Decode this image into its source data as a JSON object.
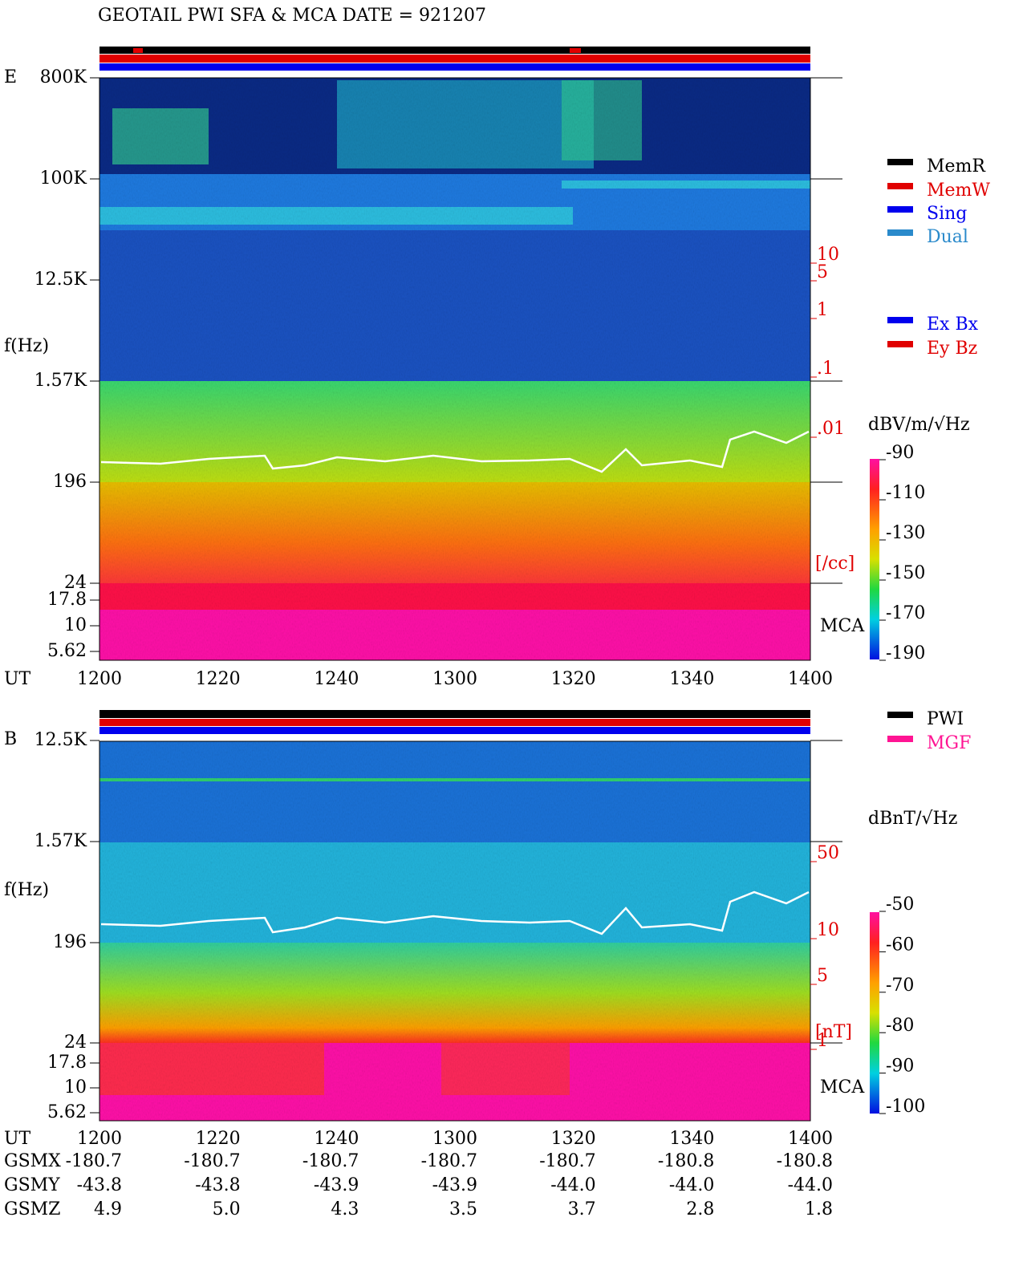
{
  "title": "GEOTAIL  PWI SFA & MCA   DATE = 921207",
  "panels": [
    {
      "label": "E",
      "axis_label": "f(Hz)",
      "freq_ticks": [
        "800K",
        "100K",
        "12.5K",
        "1.57K",
        "196",
        "24",
        "17.8",
        "10",
        "5.62"
      ],
      "density_ticks": [
        "10",
        "5",
        "1",
        ".1",
        ".01"
      ],
      "density_unit": "[/cc]",
      "mca_label": "MCA",
      "time_axis_label": "UT",
      "time_ticks": [
        "1200",
        "1220",
        "1240",
        "1300",
        "1320",
        "1340",
        "1400"
      ],
      "legend": [
        "MemR",
        "MemW",
        "Sing",
        "Dual"
      ],
      "legend2": [
        "Ex Bx",
        "Ey Bz"
      ],
      "colorbar": {
        "title": "dBV/m/√Hz",
        "ticks": [
          "-90",
          "-110",
          "-130",
          "-150",
          "-170",
          "-190"
        ]
      }
    },
    {
      "label": "B",
      "axis_label": "f(Hz)",
      "freq_ticks": [
        "12.5K",
        "1.57K",
        "196",
        "24",
        "17.8",
        "10",
        "5.62"
      ],
      "density_ticks": [
        "50",
        "10",
        "5",
        "1"
      ],
      "density_unit": "[nT]",
      "mca_label": "MCA",
      "time_axis_label": "UT",
      "time_ticks": [
        "1200",
        "1220",
        "1240",
        "1300",
        "1320",
        "1340",
        "1400"
      ],
      "legend": [
        "PWI",
        "MGF"
      ],
      "colorbar": {
        "title": "dBnT/√Hz",
        "ticks": [
          "-50",
          "-60",
          "-70",
          "-80",
          "-90",
          "-100"
        ]
      }
    }
  ],
  "orbit": {
    "rows": [
      {
        "name": "GSMX",
        "values": [
          "-180.7",
          "-180.7",
          "-180.7",
          "-180.7",
          "-180.7",
          "-180.8",
          "-180.8"
        ]
      },
      {
        "name": "GSMY",
        "values": [
          "-43.8",
          "-43.8",
          "-43.9",
          "-43.9",
          "-44.0",
          "-44.0",
          "-44.0"
        ]
      },
      {
        "name": "GSMZ",
        "values": [
          "4.9",
          "5.0",
          "4.3",
          "3.5",
          "3.7",
          "2.8",
          "1.8"
        ]
      }
    ]
  }
}
